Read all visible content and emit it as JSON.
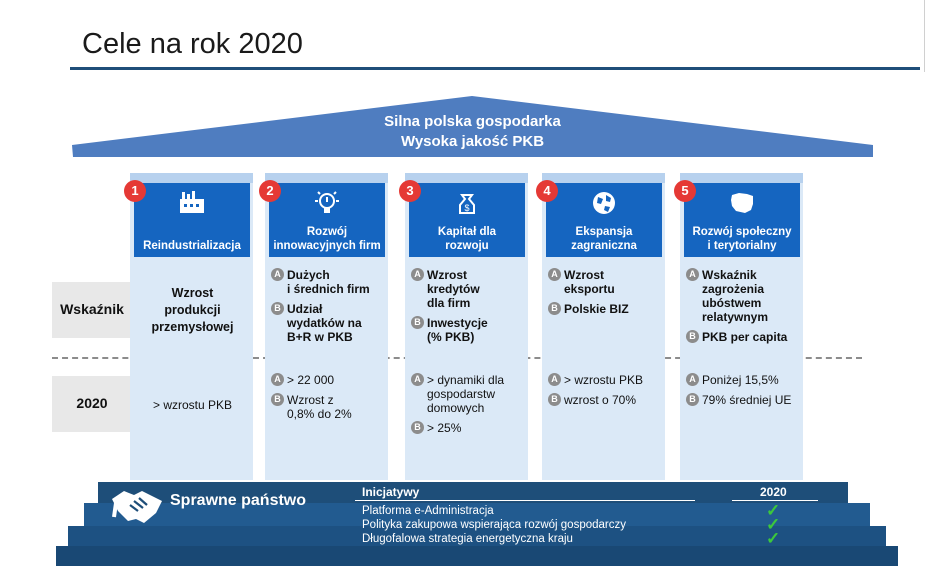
{
  "title": "Cele na rok 2020",
  "roof": {
    "line1": "Silna polska gospodarka",
    "line2": "Wysoka jakość PKB"
  },
  "row_labels": {
    "indicator": "Wskaźnik",
    "year": "2020"
  },
  "pillars": [
    {
      "number": "1",
      "icon": "factory-icon",
      "heading": "Reindustrializacja",
      "indicators": [
        {
          "badge": "",
          "text": "Wzrost\nprodukcji\nprzemysłowej"
        }
      ],
      "targets": [
        {
          "badge": "",
          "text": "> wzrostu PKB"
        }
      ]
    },
    {
      "number": "2",
      "icon": "lightbulb-icon",
      "heading": "Rozwój\ninnowacyjnych firm",
      "indicators": [
        {
          "badge": "A",
          "text": "Dużych\ni średnich firm"
        },
        {
          "badge": "B",
          "text": "Udział\nwydatków na\nB+R w PKB"
        }
      ],
      "targets": [
        {
          "badge": "A",
          "text": "> 22 000"
        },
        {
          "badge": "B",
          "text": "Wzrost z\n0,8% do 2%"
        }
      ]
    },
    {
      "number": "3",
      "icon": "money-bag-icon",
      "heading": "Kapitał dla\nrozwoju",
      "indicators": [
        {
          "badge": "A",
          "text": "Wzrost\nkredytów\ndla firm"
        },
        {
          "badge": "B",
          "text": "Inwestycje\n(% PKB)"
        }
      ],
      "targets": [
        {
          "badge": "A",
          "text": "> dynamiki dla\ngospodarstw\ndomowych"
        },
        {
          "badge": "B",
          "text": "> 25%"
        }
      ]
    },
    {
      "number": "4",
      "icon": "globe-icon",
      "heading": "Ekspansja\nzagraniczna",
      "indicators": [
        {
          "badge": "A",
          "text": "Wzrost\neksportu"
        },
        {
          "badge": "B",
          "text": "Polskie BIZ"
        }
      ],
      "targets": [
        {
          "badge": "A",
          "text": "> wzrostu PKB"
        },
        {
          "badge": "B",
          "text": "wzrost o 70%"
        }
      ]
    },
    {
      "number": "5",
      "icon": "poland-map-icon",
      "heading": "Rozwój społeczny\ni terytorialny",
      "indicators": [
        {
          "badge": "A",
          "text": "Wskaźnik\nzagrożenia\nubóstwem\nrelatywnym"
        },
        {
          "badge": "B",
          "text": "PKB per capita"
        }
      ],
      "targets": [
        {
          "badge": "A",
          "text": "Poniżej 15,5%"
        },
        {
          "badge": "B",
          "text": "79% średniej UE"
        }
      ]
    }
  ],
  "base": {
    "label": "Sprawne państwo",
    "icon": "handshake-icon",
    "col_initiatives": "Inicjatywy",
    "col_year": "2020",
    "initiatives": [
      {
        "text": "Platforma e-Administracja",
        "mark": "✓"
      },
      {
        "text": "Polityka zakupowa wspierająca rozwój gospodarczy",
        "mark": "✓"
      },
      {
        "text": "Długofalowa strategia energetyczna kraju",
        "mark": "✓"
      }
    ]
  },
  "colors": {
    "primary": "#1565c0",
    "column": "#dbe9f7",
    "number": "#e53935",
    "check": "#3cc83c",
    "navy": "#1e4e79"
  }
}
